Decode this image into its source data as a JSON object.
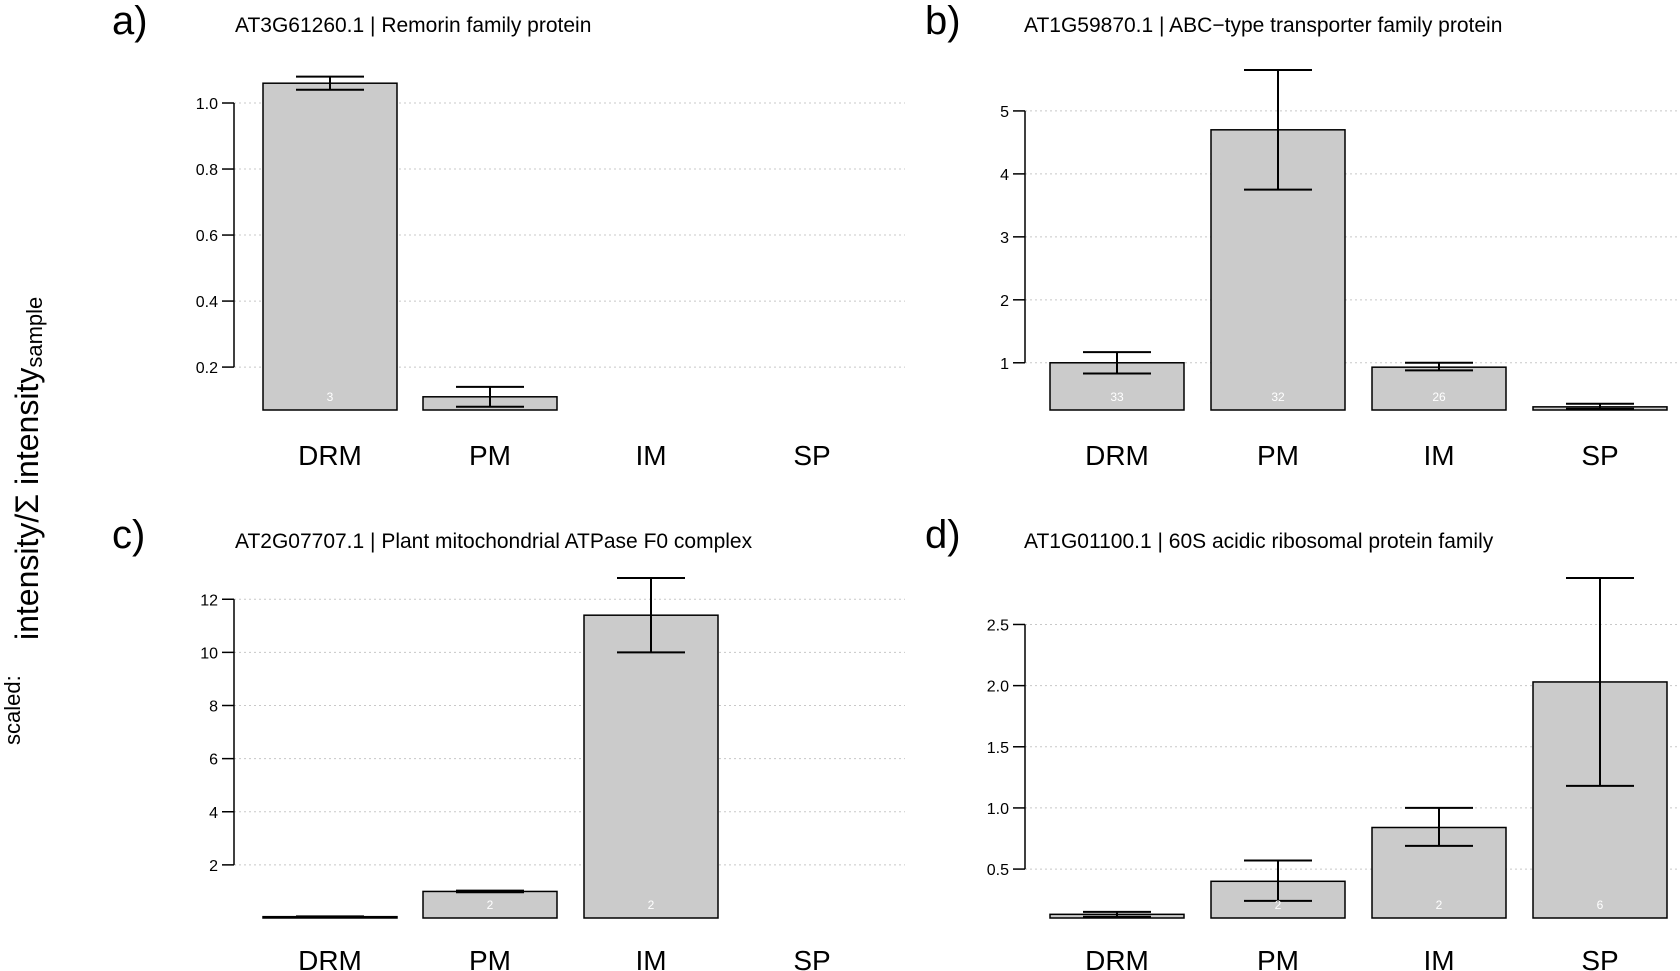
{
  "figure": {
    "ylabel_prefix": "scaled:",
    "ylabel_main": "intensity/Σ intensity",
    "ylabel_subscript": "sample"
  },
  "chart_data": [
    {
      "type": "bar",
      "panel": "a)",
      "title": "AT3G61260.1 | Remorin family protein",
      "categories": [
        "DRM",
        "PM",
        "IM",
        "SP"
      ],
      "values": [
        1.06,
        0.11,
        null,
        null
      ],
      "err_low": [
        1.04,
        0.08,
        null,
        null
      ],
      "err_high": [
        1.08,
        0.14,
        null,
        null
      ],
      "n_labels": [
        "3",
        "",
        "",
        ""
      ],
      "ylim": [
        0.07,
        1.1
      ],
      "yticks": [
        "0.2",
        "0.4",
        "0.6",
        "0.8",
        "1.0"
      ],
      "grid": "horizontal dotted"
    },
    {
      "type": "bar",
      "panel": "b)",
      "title": "AT1G59870.1 | ABC−type transporter family protein",
      "categories": [
        "DRM",
        "PM",
        "IM",
        "SP"
      ],
      "values": [
        1.0,
        4.7,
        0.93,
        0.3
      ],
      "err_low": [
        0.83,
        3.75,
        0.88,
        0.27
      ],
      "err_high": [
        1.17,
        5.65,
        1.0,
        0.35
      ],
      "n_labels": [
        "33",
        "32",
        "26",
        ""
      ],
      "ylim": [
        0.25,
        5.65
      ],
      "yticks": [
        "1",
        "2",
        "3",
        "4",
        "5"
      ],
      "grid": "horizontal dotted"
    },
    {
      "type": "bar",
      "panel": "c)",
      "title": "AT2G07707.1 | Plant mitochondrial ATPase F0 complex",
      "categories": [
        "DRM",
        "PM",
        "IM",
        "SP"
      ],
      "values": [
        0.05,
        1.0,
        11.4,
        null
      ],
      "err_low": [
        0.04,
        0.97,
        10.0,
        null
      ],
      "err_high": [
        0.06,
        1.03,
        12.8,
        null
      ],
      "n_labels": [
        "",
        "2",
        "2",
        ""
      ],
      "ylim": [
        0.0,
        12.8
      ],
      "yticks": [
        "2",
        "4",
        "6",
        "8",
        "10",
        "12"
      ],
      "grid": "horizontal dotted"
    },
    {
      "type": "bar",
      "panel": "d)",
      "title": "AT1G01100.1 | 60S acidic ribosomal protein family",
      "categories": [
        "DRM",
        "PM",
        "IM",
        "SP"
      ],
      "values": [
        0.13,
        0.4,
        0.84,
        2.03
      ],
      "err_low": [
        0.11,
        0.24,
        0.69,
        1.18
      ],
      "err_high": [
        0.15,
        0.57,
        1.0,
        2.88
      ],
      "n_labels": [
        "",
        "2",
        "2",
        "6"
      ],
      "ylim": [
        0.1,
        2.88
      ],
      "yticks": [
        "0.5",
        "1.0",
        "1.5",
        "2.0",
        "2.5"
      ],
      "grid": "horizontal dotted"
    }
  ]
}
